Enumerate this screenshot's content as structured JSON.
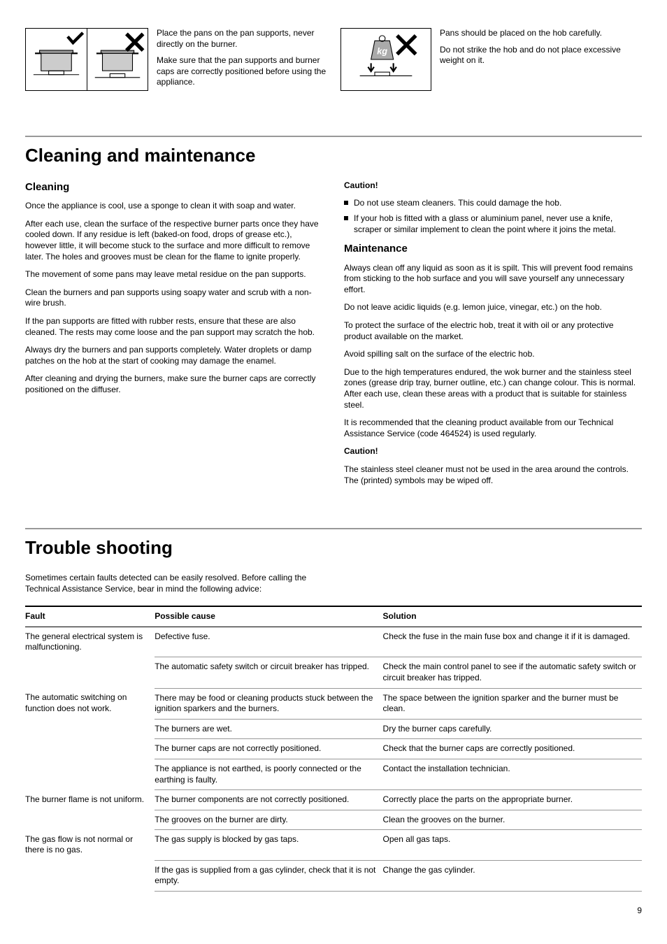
{
  "top": {
    "block1": {
      "p1": "Place the pans on the pan supports, never directly on the burner.",
      "p2": "Make sure that the pan supports and burner caps are correctly positioned before using the appliance."
    },
    "block2": {
      "p1": "Pans should be placed on the hob carefully.",
      "p2": "Do not strike the hob and do not place excessive weight on it."
    }
  },
  "cleaning": {
    "title": "Cleaning and maintenance",
    "sub1": "Cleaning",
    "p1": "Once the appliance is cool, use a sponge to clean it with soap and water.",
    "p2": "After each use, clean the surface of the respective burner parts once they have cooled down. If any residue is left (baked-on food, drops of grease etc.), however little, it will become stuck to the surface and more difficult to remove later. The holes and grooves must be clean for the flame to ignite properly.",
    "p3": "The movement of some pans may leave metal residue on the pan supports.",
    "p4": "Clean the burners and pan supports using soapy water and scrub with a non-wire brush.",
    "p5": "If the pan supports are fitted with rubber rests, ensure that these are also cleaned. The rests may come loose and the pan support may scratch the hob.",
    "p6": "Always dry the burners and pan supports completely. Water droplets or damp patches on the hob at the start of cooking may damage the enamel.",
    "p7": "After cleaning and drying the burners, make sure the burner caps are correctly positioned on the diffuser.",
    "caution1": "Caution!",
    "bul1": "Do not use steam cleaners. This could damage the hob.",
    "bul2": "If your hob is fitted with a glass or aluminium panel, never use a knife, scraper or similar implement to clean the point where it joins the metal.",
    "sub2": "Maintenance",
    "m1": "Always clean off any liquid as soon as it is spilt. This will prevent food remains from sticking to the hob surface and you will save yourself any unnecessary effort.",
    "m2": "Do not leave acidic liquids (e.g. lemon juice, vinegar, etc.) on the hob.",
    "m3": "To protect the surface of the electric hob, treat it with oil or any protective product available on the market.",
    "m4": "Avoid spilling salt on the surface of the electric hob.",
    "m5": "Due to the high temperatures endured, the wok burner and the stainless steel zones (grease drip tray, burner outline, etc.) can change colour. This is normal. After each use, clean these areas with a product that is suitable for stainless steel.",
    "m6": "It is recommended that the cleaning product available from our Technical Assistance Service (code 464524) is used regularly.",
    "caution2": "Caution!",
    "m7": "The stainless steel cleaner must not be used in the area around the controls. The (printed) symbols may be wiped off."
  },
  "trouble": {
    "title": "Trouble shooting",
    "intro": "Sometimes certain faults detected can be easily resolved. Before calling the Technical Assistance Service, bear in mind the following advice:",
    "headers": {
      "fault": "Fault",
      "cause": "Possible cause",
      "solution": "Solution"
    },
    "rows": [
      {
        "fault": "The general electrical system is malfunctioning.",
        "cause": "Defective fuse.",
        "solution": "Check the fuse in the main fuse box and change it if it is damaged."
      },
      {
        "fault": "",
        "cause": "The automatic safety switch or circuit breaker has tripped.",
        "solution": "Check the main control panel to see if the automatic safety switch or circuit breaker has tripped."
      },
      {
        "fault": "The automatic switching on function does not work.",
        "cause": "There may be food or cleaning products stuck between the ignition sparkers and the burners.",
        "solution": "The space between the ignition sparker and the burner must be clean."
      },
      {
        "fault": "",
        "cause": "The burners are wet.",
        "solution": "Dry the burner caps carefully."
      },
      {
        "fault": "",
        "cause": "The burner caps are not correctly positioned.",
        "solution": "Check that the burner caps are correctly positioned."
      },
      {
        "fault": "",
        "cause": "The appliance is not earthed, is poorly connected or the earthing is faulty.",
        "solution": "Contact the installation technician."
      },
      {
        "fault": "The burner flame is not uniform.",
        "cause": "The burner components are not correctly positioned.",
        "solution": "Correctly place the parts on the appropriate burner."
      },
      {
        "fault": "",
        "cause": "The grooves on the burner are dirty.",
        "solution": "Clean the grooves on the burner."
      },
      {
        "fault": "The gas flow is not normal or there is no gas.",
        "cause": "The gas supply is blocked by gas taps.",
        "solution": "Open all gas taps."
      },
      {
        "fault": "",
        "cause": "If the gas is supplied from a gas cylinder, check that it is not empty.",
        "solution": "Change the gas cylinder."
      }
    ]
  },
  "pageNum": "9"
}
